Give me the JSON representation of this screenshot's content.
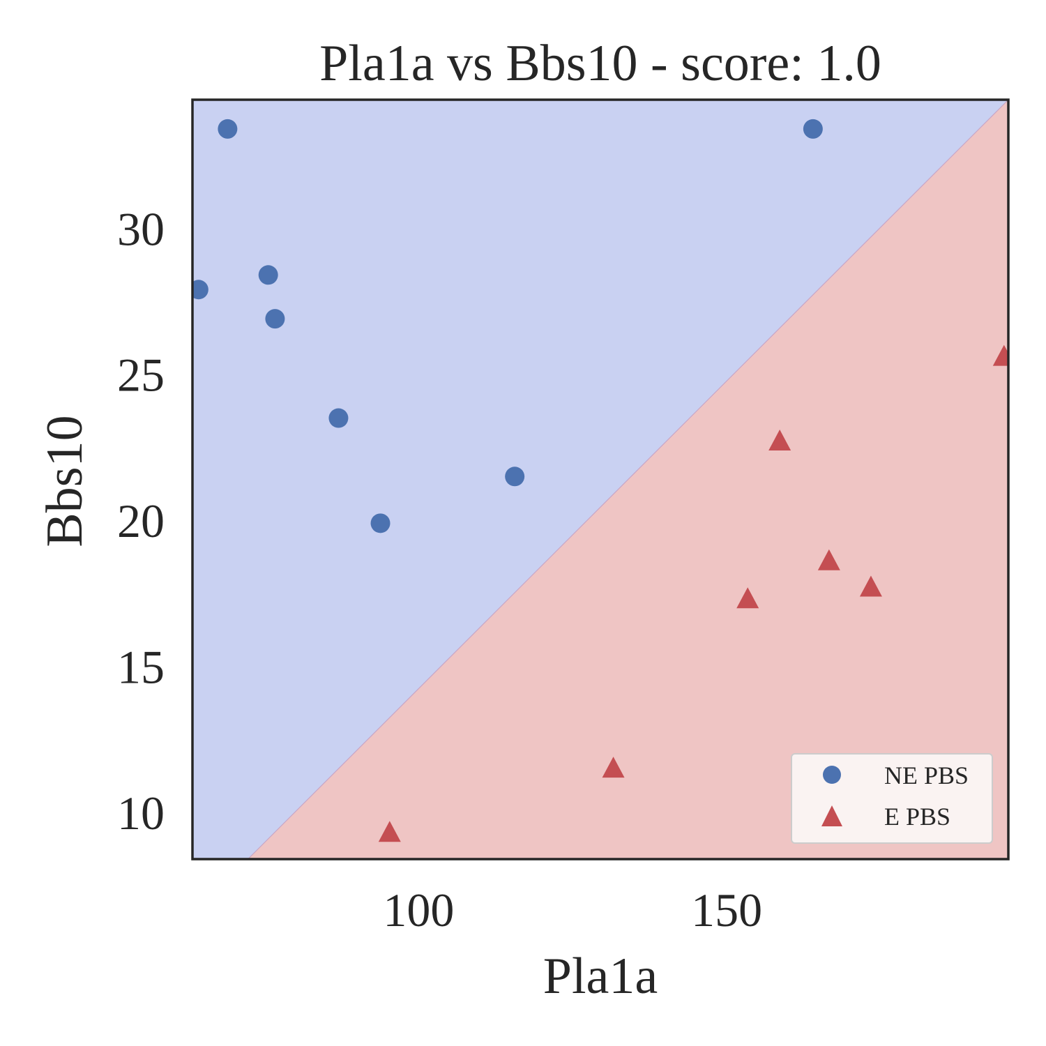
{
  "chart_data": {
    "type": "scatter",
    "title": "Pla1a vs Bbs10 - score: 1.0",
    "xlabel": "Pla1a",
    "ylabel": "Bbs10",
    "xlim": [
      63.3,
      195.7
    ],
    "ylim": [
      8.4,
      34.4
    ],
    "xticks": [
      100,
      150
    ],
    "yticks": [
      10,
      15,
      20,
      25,
      30
    ],
    "grid": false,
    "legend_position": "bottom-right",
    "decision_boundary": {
      "points": [
        [
          72.3,
          8.4
        ],
        [
          195.7,
          34.4
        ]
      ],
      "regions": [
        {
          "class": "NE PBS",
          "side": "upper-left",
          "color": "#c9d1f2"
        },
        {
          "class": "E PBS",
          "side": "lower-right",
          "color": "#efc5c4"
        }
      ]
    },
    "series": [
      {
        "name": "NE PBS",
        "marker": "circle",
        "color": "#4c72b0",
        "points": [
          {
            "x": 69.0,
            "y": 33.4
          },
          {
            "x": 64.3,
            "y": 27.9
          },
          {
            "x": 75.6,
            "y": 28.4
          },
          {
            "x": 76.7,
            "y": 26.9
          },
          {
            "x": 87.0,
            "y": 23.5
          },
          {
            "x": 93.8,
            "y": 19.9
          },
          {
            "x": 115.6,
            "y": 21.5
          },
          {
            "x": 164.0,
            "y": 33.4
          }
        ]
      },
      {
        "name": "E PBS",
        "marker": "triangle",
        "color": "#c44e52",
        "points": [
          {
            "x": 95.3,
            "y": 9.3
          },
          {
            "x": 131.6,
            "y": 11.5
          },
          {
            "x": 153.4,
            "y": 17.3
          },
          {
            "x": 158.6,
            "y": 22.7
          },
          {
            "x": 166.6,
            "y": 18.6
          },
          {
            "x": 173.4,
            "y": 17.7
          },
          {
            "x": 195.0,
            "y": 25.6
          }
        ]
      }
    ]
  }
}
